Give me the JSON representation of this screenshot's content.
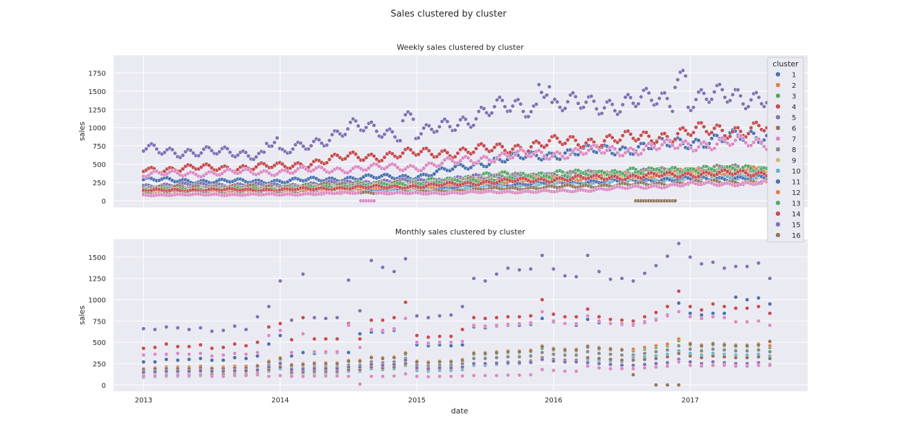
{
  "figure_title": "Sales clustered by cluster",
  "legend": {
    "title": "cluster",
    "entries": [
      "1",
      "2",
      "3",
      "4",
      "5",
      "6",
      "7",
      "8",
      "9",
      "10",
      "11",
      "12",
      "13",
      "14",
      "15",
      "16"
    ],
    "colors": [
      "#4c72b0",
      "#dd8452",
      "#55a868",
      "#c44e52",
      "#8172b3",
      "#937860",
      "#da8bc3",
      "#8c8c8c",
      "#ccb974",
      "#64b5cd",
      "#4c72b0",
      "#dd8452",
      "#55a868",
      "#c44e52",
      "#8172b3",
      "#937860"
    ]
  },
  "chart_data": [
    {
      "type": "scatter",
      "title": "Weekly sales clustered by cluster",
      "xlabel": "",
      "ylabel": "sales",
      "xlim": [
        2012.78,
        2017.86
      ],
      "ylim": [
        -90,
        1990
      ],
      "xticks": [
        2013,
        2014,
        2015,
        2016,
        2017
      ],
      "xticklabels": [],
      "yticks": [
        0,
        250,
        500,
        750,
        1000,
        1250,
        1500,
        1750
      ],
      "yticklabels": [
        "0",
        "250",
        "500",
        "750",
        "1000",
        "1250",
        "1500",
        "1750"
      ],
      "x_start": 2013.0,
      "x_end": 2017.58,
      "x_step": 0.01916,
      "grid": true,
      "legend_position": "right",
      "series": [
        {
          "name": "1",
          "cluster": 1,
          "base": [
            290,
            265,
            270,
            310,
            340,
            550,
            650,
            720,
            820,
            900
          ]
        },
        {
          "name": "2",
          "cluster": 2,
          "base": [
            150,
            175,
            160,
            170,
            200,
            240,
            260,
            300,
            330,
            350
          ]
        },
        {
          "name": "3",
          "cluster": 3,
          "base": [
            160,
            185,
            180,
            230,
            260,
            350,
            370,
            400,
            420,
            430
          ]
        },
        {
          "name": "4",
          "cluster": 4,
          "base": [
            430,
            450,
            470,
            600,
            650,
            700,
            800,
            850,
            950,
            1000
          ]
        },
        {
          "name": "5",
          "cluster": 5,
          "base": [
            210,
            220,
            210,
            250,
            270,
            330,
            330,
            350,
            380,
            360
          ]
        },
        {
          "name": "6",
          "cluster": 6,
          "base": [
            180,
            190,
            190,
            230,
            240,
            300,
            290,
            310,
            340,
            330
          ]
        },
        {
          "name": "7",
          "cluster": 7,
          "base": [
            360,
            380,
            400,
            440,
            470,
            600,
            650,
            700,
            780,
            800
          ]
        },
        {
          "name": "8",
          "cluster": 8,
          "base": [
            160,
            170,
            170,
            200,
            220,
            320,
            360,
            380,
            430,
            450
          ]
        },
        {
          "name": "9",
          "cluster": 9,
          "base": [
            140,
            150,
            150,
            170,
            190,
            260,
            290,
            320,
            350,
            370
          ]
        },
        {
          "name": "10",
          "cluster": 10,
          "base": [
            100,
            110,
            110,
            130,
            140,
            190,
            230,
            270,
            320,
            330
          ]
        },
        {
          "name": "11",
          "cluster": 11,
          "base": [
            120,
            130,
            130,
            150,
            170,
            220,
            250,
            280,
            300,
            320
          ]
        },
        {
          "name": "12",
          "cluster": 12,
          "base": [
            130,
            140,
            140,
            180,
            200,
            270,
            310,
            350,
            400,
            420
          ]
        },
        {
          "name": "13",
          "cluster": 13,
          "base": [
            150,
            160,
            160,
            200,
            230,
            280,
            330,
            380,
            420,
            430
          ]
        },
        {
          "name": "14",
          "cluster": 14,
          "base": [
            140,
            150,
            150,
            180,
            200,
            260,
            300,
            330,
            370,
            380
          ]
        },
        {
          "name": "15",
          "cluster": 15,
          "base": [
            700,
            660,
            640,
            1000,
            900,
            1250,
            1300,
            1350,
            1400,
            1450
          ]
        },
        {
          "name": "16",
          "cluster": 16,
          "base": [
            90,
            95,
            95,
            110,
            120,
            160,
            190,
            220,
            250,
            260
          ]
        },
        {
          "name": "7b",
          "cluster": 7,
          "base": [
            80,
            85,
            85,
            110,
            100,
            120,
            130,
            180,
            230,
            240
          ]
        }
      ]
    },
    {
      "type": "scatter",
      "title": "Monthly sales clustered by cluster",
      "xlabel": "date",
      "ylabel": "sales",
      "xlim": [
        2012.78,
        2017.86
      ],
      "ylim": [
        -75,
        1710
      ],
      "xticks": [
        2013,
        2014,
        2015,
        2016,
        2017
      ],
      "xticklabels": [
        "2013",
        "2014",
        "2015",
        "2016",
        "2017"
      ],
      "yticks": [
        0,
        250,
        500,
        750,
        1000,
        1250,
        1500
      ],
      "yticklabels": [
        "0",
        "250",
        "500",
        "750",
        "1000",
        "1250",
        "1500"
      ],
      "x_start": 2013.0,
      "x_end": 2017.58,
      "x_step": 0.08333,
      "grid": true,
      "series": [
        {
          "name": "15",
          "cluster": 15,
          "values": [
            660,
            650,
            680,
            670,
            650,
            670,
            630,
            640,
            690,
            650,
            800,
            920,
            1220,
            760,
            1300,
            790,
            780,
            790,
            1230,
            870,
            1460,
            1380,
            1330,
            1480,
            810,
            790,
            810,
            820,
            920,
            1250,
            1220,
            1300,
            1370,
            1350,
            1360,
            1520,
            1360,
            1280,
            1270,
            1520,
            1330,
            1240,
            1250,
            1220,
            1310,
            1400,
            1510,
            1660,
            1500,
            1420,
            1440,
            1370,
            1390,
            1390,
            1430,
            1250
          ]
        },
        {
          "name": "4",
          "cluster": 4,
          "values": [
            430,
            440,
            480,
            450,
            450,
            470,
            430,
            440,
            480,
            460,
            500,
            680,
            720,
            530,
            790,
            540,
            540,
            540,
            720,
            540,
            760,
            760,
            790,
            970,
            580,
            560,
            570,
            570,
            650,
            790,
            780,
            790,
            800,
            800,
            810,
            1000,
            830,
            800,
            800,
            890,
            800,
            770,
            760,
            750,
            800,
            850,
            920,
            1100,
            920,
            880,
            950,
            920,
            900,
            900,
            920,
            840
          ]
        },
        {
          "name": "1",
          "cluster": 1,
          "values": [
            270,
            270,
            300,
            290,
            300,
            310,
            290,
            290,
            320,
            310,
            340,
            480,
            580,
            340,
            380,
            370,
            380,
            380,
            380,
            600,
            620,
            620,
            640,
            780,
            470,
            460,
            470,
            460,
            470,
            680,
            670,
            690,
            700,
            700,
            710,
            780,
            740,
            720,
            700,
            770,
            730,
            720,
            710,
            710,
            740,
            770,
            820,
            960,
            840,
            820,
            840,
            840,
            1030,
            1000,
            1020,
            950
          ]
        },
        {
          "name": "7",
          "cluster": 7,
          "values": [
            350,
            360,
            360,
            370,
            360,
            370,
            340,
            350,
            370,
            360,
            380,
            580,
            640,
            380,
            600,
            390,
            390,
            390,
            700,
            440,
            650,
            640,
            660,
            780,
            500,
            490,
            500,
            500,
            510,
            700,
            690,
            700,
            710,
            720,
            730,
            860,
            750,
            720,
            720,
            810,
            750,
            720,
            720,
            700,
            730,
            760,
            810,
            860,
            800,
            780,
            800,
            790,
            740,
            740,
            750,
            700
          ]
        },
        {
          "name": "3",
          "cluster": 3,
          "values": [
            160,
            170,
            180,
            180,
            180,
            190,
            180,
            180,
            190,
            190,
            210,
            260,
            300,
            220,
            230,
            240,
            240,
            240,
            270,
            270,
            320,
            310,
            320,
            360,
            260,
            250,
            260,
            260,
            280,
            360,
            360,
            370,
            380,
            380,
            390,
            430,
            410,
            400,
            400,
            440,
            420,
            410,
            410,
            400,
            420,
            440,
            460,
            520,
            470,
            450,
            470,
            460,
            450,
            450,
            460,
            440
          ]
        },
        {
          "name": "12",
          "cluster": 12,
          "values": [
            190,
            200,
            210,
            210,
            210,
            220,
            200,
            210,
            220,
            220,
            230,
            280,
            320,
            240,
            250,
            260,
            260,
            260,
            290,
            290,
            330,
            320,
            330,
            380,
            280,
            270,
            280,
            280,
            300,
            380,
            380,
            390,
            400,
            400,
            410,
            460,
            430,
            420,
            420,
            460,
            440,
            430,
            420,
            420,
            440,
            460,
            480,
            540,
            490,
            470,
            490,
            480,
            470,
            470,
            480,
            460
          ]
        },
        {
          "name": "6",
          "cluster": 6,
          "values": [
            180,
            190,
            190,
            190,
            190,
            200,
            190,
            190,
            200,
            200,
            220,
            270,
            310,
            230,
            240,
            250,
            250,
            250,
            280,
            280,
            320,
            310,
            320,
            370,
            270,
            260,
            270,
            270,
            290,
            370,
            370,
            380,
            390,
            390,
            400,
            450,
            420,
            410,
            410,
            450,
            430,
            420,
            410,
            120,
            300,
            0,
            0,
            0,
            480,
            460,
            480,
            470,
            460,
            460,
            470,
            510
          ]
        },
        {
          "name": "8",
          "cluster": 8,
          "values": [
            140,
            150,
            150,
            150,
            150,
            160,
            150,
            150,
            160,
            160,
            180,
            230,
            260,
            190,
            200,
            210,
            210,
            210,
            230,
            230,
            270,
            260,
            270,
            310,
            230,
            220,
            230,
            230,
            250,
            310,
            310,
            320,
            330,
            330,
            340,
            380,
            360,
            350,
            350,
            390,
            370,
            360,
            350,
            350,
            370,
            390,
            410,
            460,
            420,
            400,
            420,
            410,
            400,
            400,
            410,
            390
          ]
        },
        {
          "name": "10",
          "cluster": 10,
          "values": [
            90,
            95,
            100,
            100,
            100,
            105,
            100,
            100,
            105,
            105,
            115,
            160,
            190,
            130,
            135,
            140,
            140,
            140,
            160,
            160,
            190,
            180,
            190,
            230,
            170,
            160,
            170,
            170,
            180,
            230,
            230,
            240,
            250,
            250,
            260,
            300,
            280,
            270,
            270,
            300,
            290,
            280,
            270,
            320,
            330,
            340,
            360,
            400,
            370,
            350,
            370,
            360,
            350,
            350,
            360,
            340
          ]
        },
        {
          "name": "16",
          "cluster": 16,
          "values": [
            110,
            115,
            120,
            120,
            120,
            125,
            120,
            120,
            125,
            125,
            135,
            180,
            210,
            150,
            155,
            160,
            160,
            160,
            180,
            180,
            210,
            200,
            210,
            250,
            190,
            180,
            190,
            190,
            200,
            250,
            250,
            260,
            270,
            270,
            280,
            320,
            300,
            290,
            290,
            320,
            310,
            300,
            290,
            290,
            300,
            310,
            330,
            370,
            340,
            320,
            340,
            330,
            320,
            320,
            330,
            310
          ]
        },
        {
          "name": "5",
          "cluster": 5,
          "values": [
            150,
            155,
            160,
            160,
            160,
            165,
            160,
            160,
            165,
            165,
            175,
            210,
            250,
            180,
            185,
            190,
            190,
            190,
            210,
            210,
            240,
            230,
            240,
            290,
            200,
            190,
            200,
            200,
            210,
            250,
            250,
            255,
            260,
            260,
            265,
            300,
            280,
            270,
            270,
            260,
            250,
            240,
            230,
            230,
            240,
            250,
            260,
            300,
            270,
            250,
            270,
            260,
            250,
            250,
            260,
            240
          ]
        },
        {
          "name": "7b",
          "cluster": 7,
          "values": [
            100,
            105,
            110,
            110,
            110,
            115,
            100,
            100,
            110,
            110,
            120,
            100,
            110,
            100,
            100,
            105,
            105,
            105,
            100,
            10,
            100,
            100,
            105,
            130,
            100,
            95,
            100,
            100,
            105,
            110,
            110,
            110,
            115,
            115,
            120,
            180,
            170,
            160,
            160,
            220,
            200,
            190,
            190,
            190,
            200,
            210,
            220,
            270,
            230,
            220,
            230,
            230,
            220,
            220,
            230,
            230
          ]
        }
      ]
    }
  ]
}
